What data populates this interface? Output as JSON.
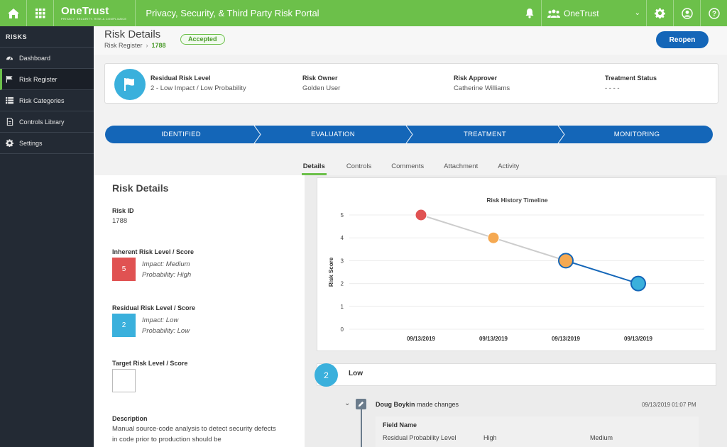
{
  "topbar": {
    "brand": "OneTrust",
    "brand_tag": "PRIVACY. SECURITY. RISK & COMPLIANCE",
    "portal_title": "Privacy, Security, & Third Party Risk Portal",
    "org_name": "OneTrust",
    "accent": "#6cc04a"
  },
  "sidebar": {
    "header": "RISKS",
    "items": [
      {
        "label": "Dashboard",
        "icon": "dashboard-icon"
      },
      {
        "label": "Risk Register",
        "icon": "flag-icon"
      },
      {
        "label": "Risk Categories",
        "icon": "list-icon"
      },
      {
        "label": "Controls Library",
        "icon": "document-icon"
      },
      {
        "label": "Settings",
        "icon": "gear-icon"
      }
    ],
    "active": "Risk Register"
  },
  "header": {
    "title": "Risk Details",
    "status": "Accepted",
    "breadcrumb_parent": "Risk Register",
    "breadcrumb_id": "1788",
    "reopen_label": "Reopen"
  },
  "summary": {
    "residual_label": "Residual Risk Level",
    "residual_value": "2 - Low Impact / Low Probability",
    "owner_label": "Risk Owner",
    "owner_value": "Golden User",
    "approver_label": "Risk Approver",
    "approver_value": "Catherine Williams",
    "treatment_label": "Treatment Status",
    "treatment_value": "- - - -"
  },
  "stages": [
    "IDENTIFIED",
    "EVALUATION",
    "TREATMENT",
    "MONITORING"
  ],
  "tabs": [
    "Details",
    "Controls",
    "Comments",
    "Attachment",
    "Activity"
  ],
  "active_tab": "Details",
  "details": {
    "title": "Risk Details",
    "risk_id_label": "Risk ID",
    "risk_id": "1788",
    "inherent_label": "Inherent Risk Level / Score",
    "inherent_score": "5",
    "inherent_impact": "Impact: Medium",
    "inherent_probability": "Probability: High",
    "residual_label": "Residual Risk Level / Score",
    "residual_score": "2",
    "residual_impact": "Impact: Low",
    "residual_probability": "Probability: Low",
    "target_label": "Target Risk Level / Score",
    "description_label": "Description",
    "description": "Manual source-code analysis to detect security defects in code prior to production should be"
  },
  "chart_data": {
    "type": "line",
    "title": "Risk History Timeline",
    "xlabel": "",
    "ylabel": "Risk Score",
    "categories": [
      "09/13/2019",
      "09/13/2019",
      "09/13/2019",
      "09/13/2019"
    ],
    "values": [
      5,
      4,
      3,
      2
    ],
    "point_colors": [
      "#e05252",
      "#f5a952",
      "#f5a952",
      "#3ab0dc"
    ],
    "ylim": [
      0,
      5
    ],
    "yticks": [
      0,
      1,
      2,
      3,
      4,
      5
    ],
    "grid": true
  },
  "timeline": {
    "badge": "2",
    "label": "Low",
    "entry_user": "Doug Boykin",
    "entry_action": " made changes",
    "entry_time": "09/13/2019 01:07 PM",
    "field_name_label": "Field Name",
    "row_field": "Residual Probability Level",
    "row_old": "High",
    "row_new": "Medium"
  }
}
